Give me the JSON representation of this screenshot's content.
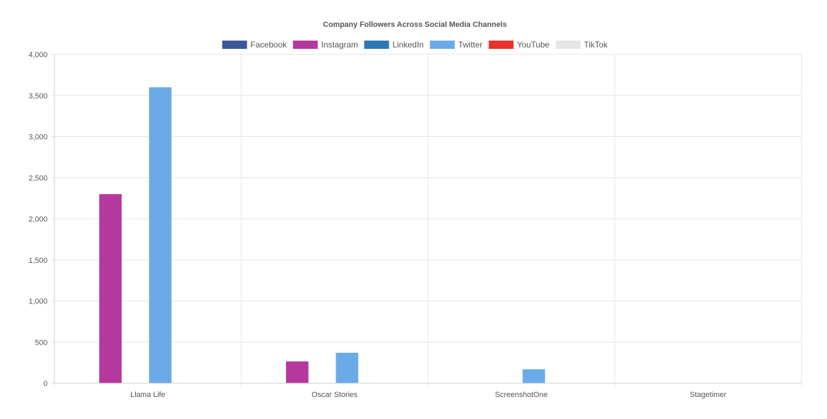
{
  "chart_data": {
    "type": "bar",
    "title": "Company Followers Across Social Media Channels",
    "xlabel": "",
    "ylabel": "",
    "categories": [
      "Llama Life",
      "Oscar Stories",
      "ScreenshotOne",
      "Stagetimer"
    ],
    "series": [
      {
        "name": "Facebook",
        "color": "#3b5998",
        "values": [
          0,
          0,
          0,
          0
        ]
      },
      {
        "name": "Instagram",
        "color": "#b5389f",
        "values": [
          2300,
          265,
          0,
          0
        ]
      },
      {
        "name": "LinkedIn",
        "color": "#2d77b5",
        "values": [
          0,
          0,
          0,
          0
        ]
      },
      {
        "name": "Twitter",
        "color": "#6aaae8",
        "values": [
          3600,
          370,
          170,
          0
        ]
      },
      {
        "name": "YouTube",
        "color": "#e9322d",
        "values": [
          0,
          0,
          0,
          0
        ]
      },
      {
        "name": "TikTok",
        "color": "#e6e6e6",
        "values": [
          0,
          0,
          0,
          0
        ]
      }
    ],
    "ylim": [
      0,
      4000
    ],
    "yticks": [
      0,
      500,
      1000,
      1500,
      2000,
      2500,
      3000,
      3500,
      4000
    ],
    "ytick_labels": [
      "0",
      "500",
      "1,000",
      "1,500",
      "2,000",
      "2,500",
      "3,000",
      "3,500",
      "4,000"
    ],
    "grid": true,
    "legend_position": "top-center"
  }
}
